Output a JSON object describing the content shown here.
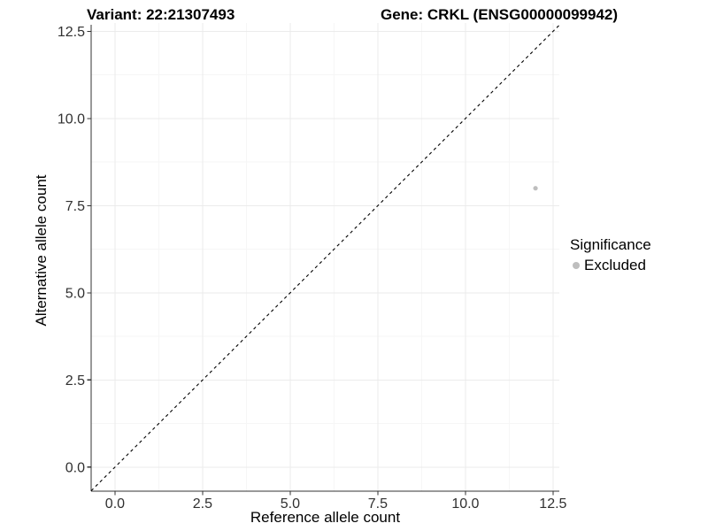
{
  "title": {
    "variant": "Variant: 22:21307493",
    "gene": "Gene: CRKL (ENSG00000099942)"
  },
  "axes": {
    "x_label": "Reference allele count",
    "y_label": "Alternative allele count"
  },
  "legend": {
    "title": "Significance",
    "items": [
      {
        "label": "Excluded",
        "color": "#bebebe",
        "marker": "circle"
      }
    ]
  },
  "chart_data": {
    "type": "scatter",
    "title": "Variant: 22:21307493   Gene: CRKL (ENSG00000099942)",
    "xlabel": "Reference allele count",
    "ylabel": "Alternative allele count",
    "xlim": [
      -0.68,
      12.68
    ],
    "ylim": [
      -0.69,
      12.74
    ],
    "x_ticks": [
      0,
      2.5,
      5,
      7.5,
      10,
      12.5
    ],
    "y_ticks": [
      0,
      2.5,
      5,
      7.5,
      10,
      12.5
    ],
    "x_tick_labels": [
      "0.0",
      "2.5",
      "5.0",
      "7.5",
      "10.0",
      "12.5"
    ],
    "y_tick_labels": [
      "0.0",
      "2.5",
      "5.0",
      "7.5",
      "10.0",
      "12.5"
    ],
    "grid": "major+minor",
    "legend_position": "right",
    "reference_line": {
      "equation": "y = x",
      "style": "dashed",
      "color": "#000000"
    },
    "series": [
      {
        "name": "Excluded",
        "color": "#bebebe",
        "points": [
          {
            "x": 12,
            "y": 8
          }
        ]
      }
    ]
  },
  "theme": {
    "background": "#ffffff",
    "grid_major": "#ebebeb",
    "grid_minor": "#f6f6f6",
    "axis_color": "#333333",
    "tick_label_color": "#303030",
    "text_color": "#000000",
    "point_color": "#bebebe"
  }
}
